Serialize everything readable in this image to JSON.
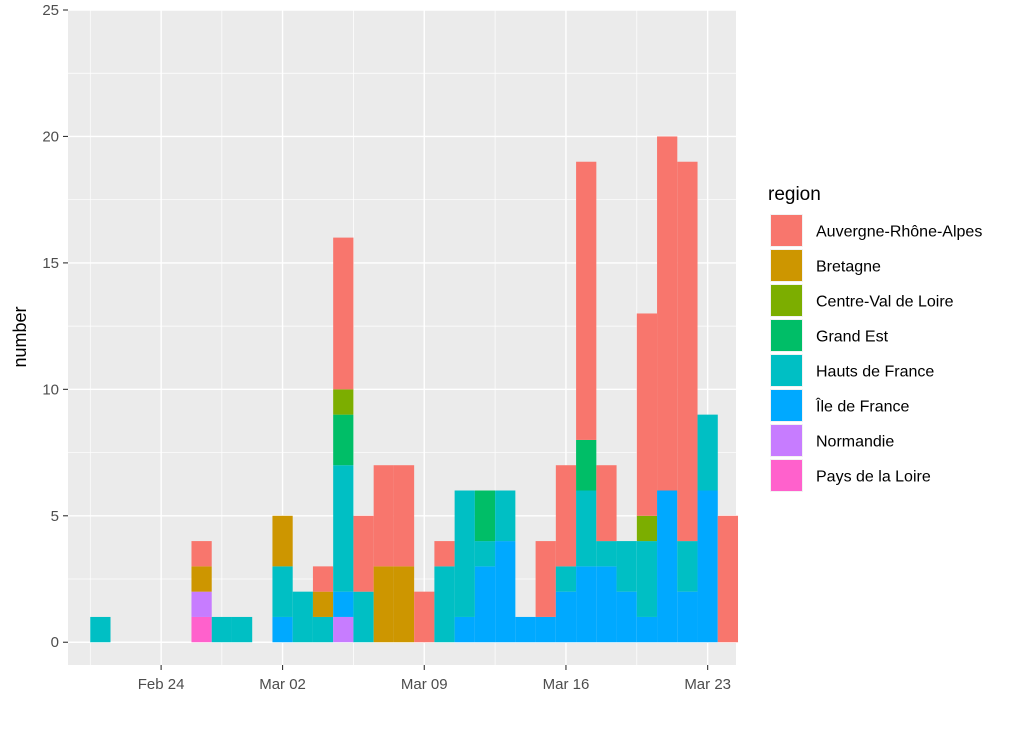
{
  "chart_data": {
    "type": "bar",
    "stacked": true,
    "title": "",
    "xlabel": "",
    "ylabel": "number",
    "ylim": [
      -0.9,
      25
    ],
    "yticks": [
      0,
      5,
      10,
      15,
      20,
      25
    ],
    "xlim_day": [
      -1.6,
      31.4
    ],
    "bin_width_days": 1,
    "xticks": [
      {
        "label": "Feb 24",
        "day": 3
      },
      {
        "label": "Mar 02",
        "day": 9
      },
      {
        "label": "Mar 09",
        "day": 16
      },
      {
        "label": "Mar 16",
        "day": 23
      },
      {
        "label": "Mar 23",
        "day": 30
      }
    ],
    "legend_title": "region",
    "legend_position": "right",
    "stack_order_bottom_to_top": [
      "Pays de la Loire",
      "Normandie",
      "Île de France",
      "Hauts de France",
      "Grand Est",
      "Centre-Val de Loire",
      "Bretagne",
      "Auvergne-Rhône-Alpes"
    ],
    "series": [
      {
        "name": "Auvergne-Rhône-Alpes",
        "color": "#F8766D",
        "counts": [
          0,
          0,
          0,
          0,
          0,
          1,
          0,
          0,
          0,
          0,
          0,
          1,
          6,
          3,
          4,
          4,
          2,
          1,
          0,
          0,
          0,
          0,
          3,
          4,
          11,
          3,
          0,
          8,
          14,
          15,
          0,
          5
        ]
      },
      {
        "name": "Bretagne",
        "color": "#CD9600",
        "counts": [
          0,
          0,
          0,
          0,
          0,
          1,
          0,
          0,
          0,
          2,
          0,
          1,
          0,
          0,
          3,
          3,
          0,
          0,
          0,
          0,
          0,
          0,
          0,
          0,
          0,
          0,
          0,
          0,
          0,
          0,
          0,
          0
        ]
      },
      {
        "name": "Centre-Val de Loire",
        "color": "#7CAE00",
        "counts": [
          0,
          0,
          0,
          0,
          0,
          0,
          0,
          0,
          0,
          0,
          0,
          0,
          1,
          0,
          0,
          0,
          0,
          0,
          0,
          0,
          0,
          0,
          0,
          0,
          0,
          0,
          0,
          1,
          0,
          0,
          0,
          0
        ]
      },
      {
        "name": "Grand Est",
        "color": "#00BE67",
        "counts": [
          0,
          0,
          0,
          0,
          0,
          0,
          0,
          0,
          0,
          0,
          0,
          0,
          2,
          0,
          0,
          0,
          0,
          0,
          0,
          2,
          0,
          0,
          0,
          0,
          2,
          0,
          0,
          0,
          0,
          0,
          0,
          0
        ]
      },
      {
        "name": "Hauts de France",
        "color": "#00BFC4",
        "counts": [
          1,
          0,
          0,
          0,
          0,
          0,
          1,
          1,
          0,
          2,
          2,
          1,
          5,
          2,
          0,
          0,
          0,
          3,
          5,
          1,
          2,
          0,
          0,
          1,
          3,
          1,
          2,
          3,
          0,
          2,
          3,
          0
        ]
      },
      {
        "name": "Île de France",
        "color": "#00A9FF",
        "counts": [
          0,
          0,
          0,
          0,
          0,
          0,
          0,
          0,
          0,
          1,
          0,
          0,
          1,
          0,
          0,
          0,
          0,
          0,
          1,
          3,
          4,
          1,
          1,
          2,
          3,
          3,
          2,
          1,
          6,
          2,
          6,
          0
        ]
      },
      {
        "name": "Normandie",
        "color": "#C77CFF",
        "counts": [
          0,
          0,
          0,
          0,
          0,
          1,
          0,
          0,
          0,
          0,
          0,
          0,
          1,
          0,
          0,
          0,
          0,
          0,
          0,
          0,
          0,
          0,
          0,
          0,
          0,
          0,
          0,
          0,
          0,
          0,
          0,
          0
        ]
      },
      {
        "name": "Pays de la Loire",
        "color": "#FF61CC",
        "counts": [
          0,
          0,
          0,
          0,
          0,
          1,
          0,
          0,
          0,
          0,
          0,
          0,
          0,
          0,
          0,
          0,
          0,
          0,
          0,
          0,
          0,
          0,
          0,
          0,
          0,
          0,
          0,
          0,
          0,
          0,
          0,
          0
        ]
      }
    ]
  }
}
